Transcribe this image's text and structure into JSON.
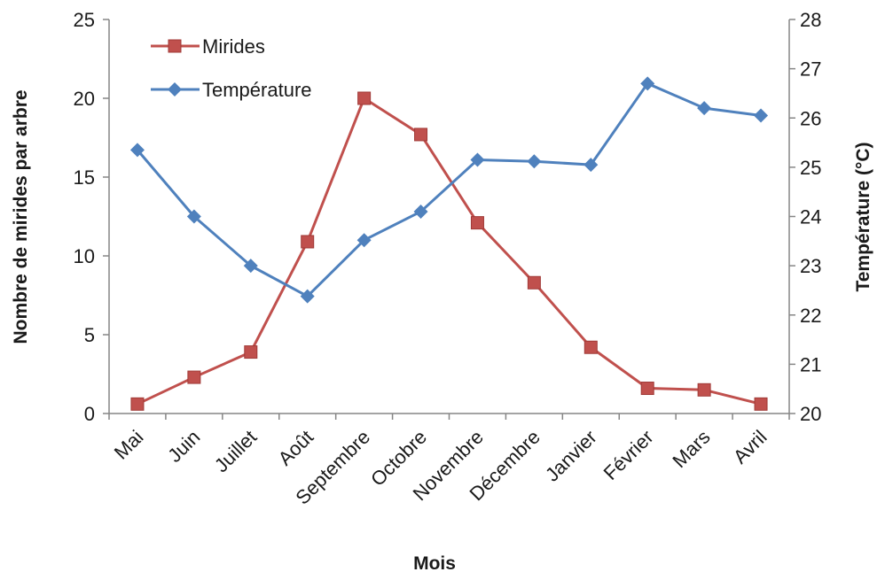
{
  "chart_data": {
    "type": "line",
    "title": "",
    "xlabel": "Mois",
    "ylabel": "Nombre de mirides par arbre",
    "y2label": "Température (°C)",
    "categories": [
      "Mai",
      "Juin",
      "Juillet",
      "Août",
      "Septembre",
      "Octobre",
      "Novembre",
      "Décembre",
      "Janvier",
      "Février",
      "Mars",
      "Avril"
    ],
    "ylim": [
      0,
      25
    ],
    "yticks": [
      "0",
      "5",
      "10",
      "15",
      "20",
      "25"
    ],
    "y2lim": [
      20,
      28
    ],
    "y2ticks": [
      "20",
      "21",
      "22",
      "23",
      "24",
      "25",
      "26",
      "27",
      "28"
    ],
    "grid": false,
    "legend_position": "top-left",
    "series": [
      {
        "name": "Mirides",
        "axis": "left",
        "color": "#C0504D",
        "marker": "square",
        "values": [
          0.6,
          2.3,
          3.9,
          10.9,
          20.0,
          17.7,
          12.1,
          8.3,
          4.2,
          1.6,
          1.5,
          0.6
        ]
      },
      {
        "name": "Température",
        "axis": "right",
        "color": "#4F81BD",
        "marker": "diamond",
        "values": [
          25.35,
          24.0,
          23.0,
          22.38,
          23.52,
          24.1,
          25.15,
          25.12,
          25.05,
          26.7,
          26.2,
          26.05
        ]
      }
    ]
  }
}
